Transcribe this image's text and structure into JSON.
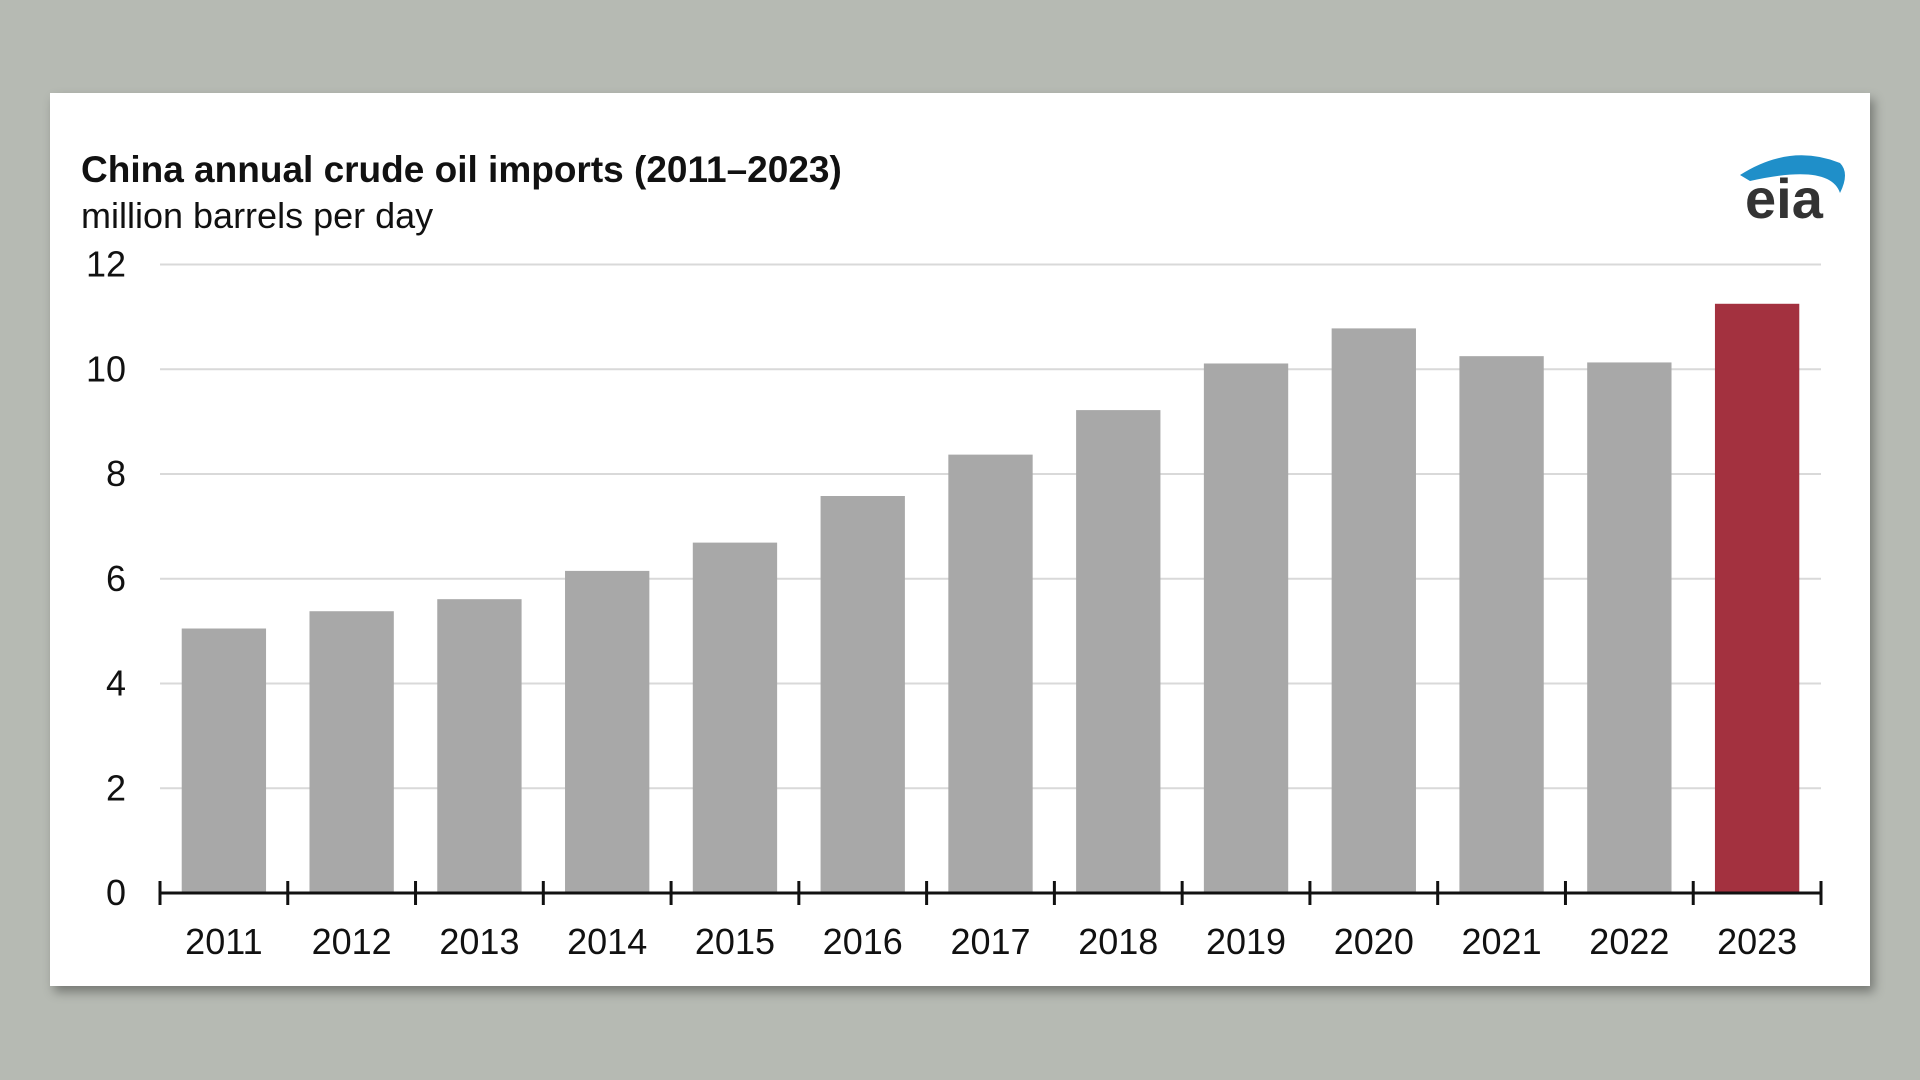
{
  "chart_data": {
    "type": "bar",
    "title": "China annual crude oil imports (2011–2023)",
    "subtitle": "million barrels per day",
    "xlabel": "",
    "ylabel": "",
    "categories": [
      "2011",
      "2012",
      "2013",
      "2014",
      "2015",
      "2016",
      "2017",
      "2018",
      "2019",
      "2020",
      "2021",
      "2022",
      "2023"
    ],
    "values": [
      5.05,
      5.38,
      5.61,
      6.15,
      6.69,
      7.58,
      8.37,
      9.22,
      10.11,
      10.78,
      10.25,
      10.13,
      11.25
    ],
    "ylim": [
      0,
      12
    ],
    "yticks": [
      0,
      2,
      4,
      6,
      8,
      10,
      12
    ],
    "grid": true,
    "colors": {
      "default": "#a8a8a8",
      "highlight": "#a3313f",
      "highlight_category": "2023",
      "grid": "#d9d9d9",
      "axis": "#111111"
    },
    "logo": {
      "text": "eia",
      "color": "#333333",
      "arc_color": "#1f8fc9"
    }
  }
}
